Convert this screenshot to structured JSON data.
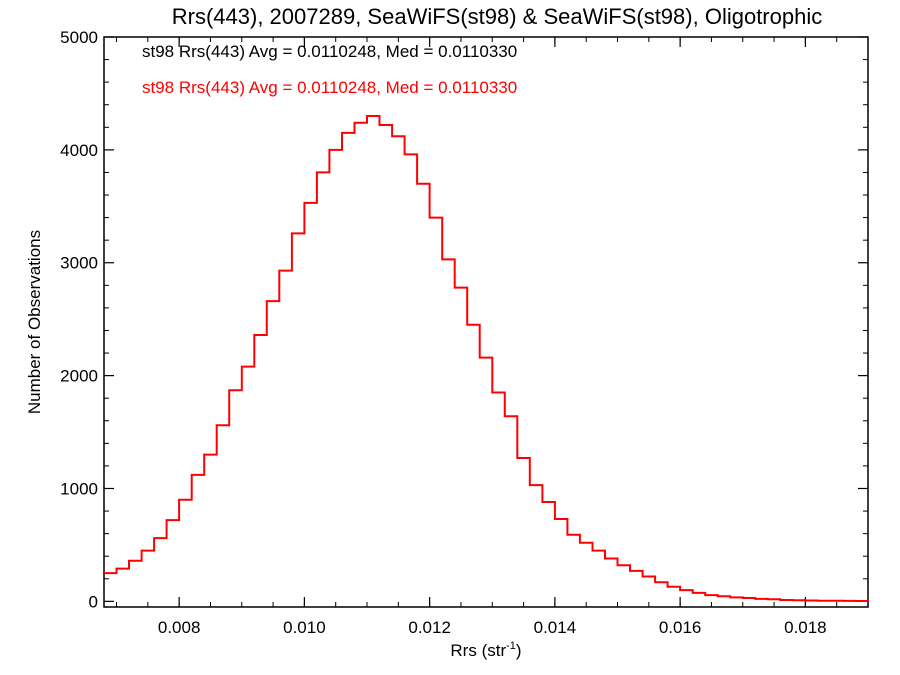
{
  "chart_data": {
    "type": "line",
    "title": "Rrs(443), 2007289, SeaWiFS(st98) & SeaWiFS(st98), Oligotrophic",
    "xlabel_main": "Rrs (str",
    "xlabel_exp": "-1",
    "xlabel_close": ")",
    "ylabel": "Number of Observations",
    "xlim": [
      0.0068,
      0.019
    ],
    "ylim": [
      -50,
      5000
    ],
    "x_ticks": [
      {
        "value": 0.008,
        "label": "0.008"
      },
      {
        "value": 0.01,
        "label": "0.010"
      },
      {
        "value": 0.012,
        "label": "0.012"
      },
      {
        "value": 0.014,
        "label": "0.014"
      },
      {
        "value": 0.016,
        "label": "0.016"
      },
      {
        "value": 0.018,
        "label": "0.018"
      }
    ],
    "y_ticks": [
      {
        "value": 0,
        "label": "0"
      },
      {
        "value": 1000,
        "label": "1000"
      },
      {
        "value": 2000,
        "label": "2000"
      },
      {
        "value": 3000,
        "label": "3000"
      },
      {
        "value": 4000,
        "label": "4000"
      },
      {
        "value": 5000,
        "label": "5000"
      }
    ],
    "grid": false,
    "legend_position": "top-left",
    "annotations": [
      {
        "text": "st98 Rrs(443) Avg = 0.0110248, Med = 0.0110330",
        "color": "#000000"
      },
      {
        "text": "st98 Rrs(443) Avg = 0.0110248, Med = 0.0110330",
        "color": "#ff0000"
      }
    ],
    "series": [
      {
        "color": "#ff0000",
        "step": true,
        "points": [
          [
            0.0068,
            250
          ],
          [
            0.007,
            290
          ],
          [
            0.0072,
            360
          ],
          [
            0.0074,
            450
          ],
          [
            0.0076,
            560
          ],
          [
            0.0078,
            720
          ],
          [
            0.008,
            900
          ],
          [
            0.0082,
            1120
          ],
          [
            0.0084,
            1300
          ],
          [
            0.0086,
            1560
          ],
          [
            0.0088,
            1870
          ],
          [
            0.009,
            2080
          ],
          [
            0.0092,
            2360
          ],
          [
            0.0094,
            2660
          ],
          [
            0.0096,
            2930
          ],
          [
            0.0098,
            3260
          ],
          [
            0.01,
            3530
          ],
          [
            0.0102,
            3800
          ],
          [
            0.0104,
            4000
          ],
          [
            0.0106,
            4150
          ],
          [
            0.0108,
            4240
          ],
          [
            0.011,
            4300
          ],
          [
            0.0112,
            4220
          ],
          [
            0.0114,
            4120
          ],
          [
            0.0116,
            3960
          ],
          [
            0.0118,
            3700
          ],
          [
            0.012,
            3400
          ],
          [
            0.0122,
            3030
          ],
          [
            0.0124,
            2780
          ],
          [
            0.0126,
            2450
          ],
          [
            0.0128,
            2160
          ],
          [
            0.013,
            1850
          ],
          [
            0.0132,
            1640
          ],
          [
            0.0134,
            1270
          ],
          [
            0.0136,
            1030
          ],
          [
            0.0138,
            880
          ],
          [
            0.014,
            730
          ],
          [
            0.0142,
            590
          ],
          [
            0.0144,
            520
          ],
          [
            0.0146,
            450
          ],
          [
            0.0148,
            380
          ],
          [
            0.015,
            320
          ],
          [
            0.0152,
            270
          ],
          [
            0.0154,
            220
          ],
          [
            0.0156,
            170
          ],
          [
            0.0158,
            130
          ],
          [
            0.016,
            100
          ],
          [
            0.0162,
            75
          ],
          [
            0.0164,
            55
          ],
          [
            0.0166,
            45
          ],
          [
            0.0168,
            35
          ],
          [
            0.017,
            30
          ],
          [
            0.0172,
            22
          ],
          [
            0.0174,
            18
          ],
          [
            0.0176,
            12
          ],
          [
            0.0178,
            10
          ],
          [
            0.018,
            8
          ],
          [
            0.0182,
            6
          ],
          [
            0.0184,
            5
          ],
          [
            0.0186,
            4
          ],
          [
            0.0188,
            3
          ],
          [
            0.019,
            2
          ]
        ]
      }
    ]
  }
}
